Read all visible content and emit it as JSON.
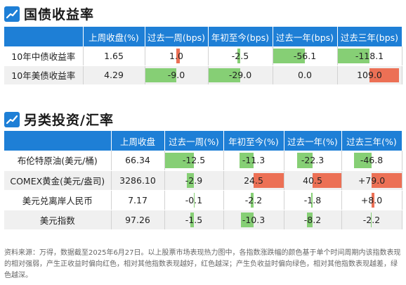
{
  "sections": [
    {
      "title": "国债收益率",
      "columns": [
        "上周收盘(%)",
        "过去一周(bps)",
        "年初至今(bps)",
        "过去一年(bps)",
        "过去三年(bps)"
      ],
      "rows": [
        {
          "name": "10年中债收益率",
          "close": "1.65",
          "changes": [
            "1.0",
            "-2.5",
            "-56.1",
            "-118.1"
          ]
        },
        {
          "name": "10年美债收益率",
          "close": "4.29",
          "changes": [
            "-9.0",
            "-29.0",
            "0.0",
            "109.0"
          ]
        }
      ]
    },
    {
      "title": "另类投资/汇率",
      "columns": [
        "上周收盘",
        "过去一周(%)",
        "年初至今(%)",
        "过去一年(%)",
        "过去三年(%)"
      ],
      "rows": [
        {
          "name": "布伦特原油(美元/桶)",
          "close": "66.34",
          "changes": [
            "-12.5",
            "-11.3",
            "-22.3",
            "-46.8"
          ]
        },
        {
          "name": "COMEX黄金(美元/盎司)",
          "close": "3286.10",
          "changes": [
            "-2.9",
            "24.5",
            "40.5",
            "+79.0"
          ]
        },
        {
          "name": "美元兑离岸人民币",
          "close": "7.17",
          "changes": [
            "-0.1",
            "-2.2",
            "-1.8",
            "+8.0"
          ]
        },
        {
          "name": "美元指数",
          "close": "97.26",
          "changes": [
            "-1.5",
            "-10.3",
            "-8.2",
            "-2.2"
          ]
        }
      ]
    }
  ],
  "footnote": "资料来源：万得，数据截至2025年6月27日。以上股票市场表现热力图中，各指数涨跌幅的颜色基于单个时间周期内该指数表现的相对强弱，产生正收益时偏向红色，相对其他指数表现越好，红色越深；产生负收益时偏向绿色，相对其他指数表现越差，绿色越深。",
  "colors": {
    "header": "#1e7fd6",
    "positive": "#ec7055",
    "negative": "#86cf75"
  }
}
